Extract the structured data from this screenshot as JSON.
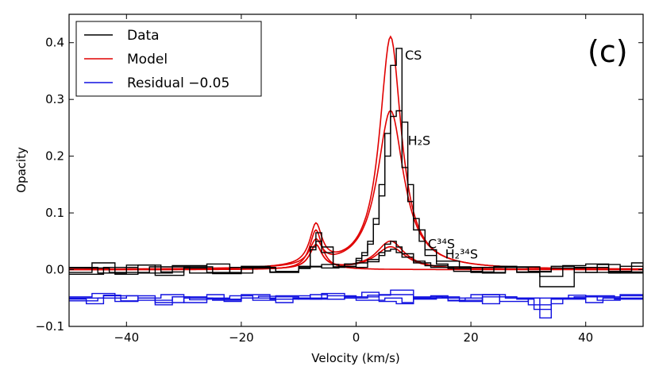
{
  "chart_data": {
    "type": "line",
    "panel_label": "(c)",
    "xlabel": "Velocity (km/s)",
    "ylabel": "Opacity",
    "xlim": [
      -50,
      50
    ],
    "ylim": [
      -0.1,
      0.45
    ],
    "xticks": [
      -40,
      -20,
      0,
      20,
      40
    ],
    "xtick_labels": [
      "−40",
      "−20",
      "0",
      "20",
      "40"
    ],
    "yticks": [
      -0.1,
      0.0,
      0.1,
      0.2,
      0.3,
      0.4
    ],
    "ytick_labels": [
      "−0.1",
      "0.0",
      "0.1",
      "0.2",
      "0.3",
      "0.4"
    ],
    "grid": false,
    "legend": {
      "placement": "top-left",
      "entries": [
        {
          "label": "Data",
          "color": "#000000"
        },
        {
          "label": "Model",
          "color": "#e00000"
        },
        {
          "label": "Residual −0.05",
          "color": "#1010e0"
        }
      ]
    },
    "annotations": [
      {
        "id": "cs",
        "text": "CS",
        "x": 8.5,
        "y": 0.37
      },
      {
        "id": "h2s",
        "text": "H₂S",
        "x": 9.0,
        "y": 0.22
      },
      {
        "id": "c34s",
        "text": "C³⁴S",
        "x": 12.5,
        "y": 0.038
      },
      {
        "id": "h234s",
        "text": "H₂³⁴S",
        "x": 15.5,
        "y": 0.02
      }
    ],
    "components": [
      {
        "name": "CS",
        "center": 6.0,
        "peak": 0.41,
        "width": 2.3
      },
      {
        "name": "H2S",
        "center": 6.0,
        "peak": 0.28,
        "width": 2.8
      },
      {
        "name": "C34S",
        "center": 6.0,
        "peak": 0.05,
        "width": 3.0
      },
      {
        "name": "H234S",
        "center": 6.0,
        "peak": 0.04,
        "width": 3.2
      },
      {
        "name": "secondary",
        "center": -7.0,
        "peak": 0.07,
        "width": 1.3
      }
    ],
    "series": [
      {
        "name": "Data CS",
        "style": "step",
        "color": "#000000",
        "x": [
          -50,
          -46,
          -42,
          -38,
          -34,
          -30,
          -26,
          -22,
          -18,
          -14,
          -10,
          -8,
          -7,
          -6,
          -4,
          -2,
          0,
          1,
          2,
          3,
          4,
          5,
          6,
          7,
          8,
          9,
          10,
          11,
          12,
          14,
          16,
          20,
          24,
          28,
          32,
          36,
          40,
          44,
          48,
          50
        ],
        "y": [
          -0.005,
          0.012,
          -0.008,
          0.008,
          -0.004,
          0.003,
          0.01,
          -0.006,
          0.004,
          -0.003,
          0.002,
          0.04,
          0.065,
          0.04,
          0.005,
          0.01,
          0.02,
          0.03,
          0.05,
          0.09,
          0.15,
          0.24,
          0.36,
          0.39,
          0.26,
          0.15,
          0.09,
          0.05,
          0.025,
          0.01,
          0.005,
          -0.004,
          0.006,
          -0.005,
          -0.012,
          0.007,
          0.01,
          -0.003,
          0.012,
          0.004
        ]
      },
      {
        "name": "Data H2S",
        "style": "step",
        "color": "#000000",
        "x": [
          -50,
          -45,
          -40,
          -35,
          -30,
          -25,
          -20,
          -15,
          -10,
          -8,
          -7,
          -6,
          -4,
          -2,
          0,
          1,
          2,
          3,
          4,
          5,
          6,
          7,
          8,
          9,
          10,
          12,
          14,
          18,
          22,
          26,
          30,
          34,
          38,
          42,
          46,
          50
        ],
        "y": [
          0.004,
          -0.006,
          0.008,
          -0.01,
          0.005,
          -0.007,
          0.006,
          -0.004,
          0.003,
          0.035,
          0.05,
          0.03,
          0.004,
          0.01,
          0.016,
          0.025,
          0.045,
          0.08,
          0.13,
          0.2,
          0.27,
          0.28,
          0.18,
          0.12,
          0.07,
          0.035,
          0.015,
          0.004,
          -0.006,
          0.004,
          -0.003,
          0.006,
          -0.005,
          0.009,
          -0.004,
          0.006
        ]
      },
      {
        "name": "Data C34S",
        "style": "step",
        "color": "#000000",
        "x": [
          -50,
          -44,
          -38,
          -32,
          -26,
          -20,
          -14,
          -10,
          -6,
          -3,
          0,
          2,
          4,
          5,
          6,
          7,
          8,
          10,
          12,
          16,
          20,
          26,
          32,
          38,
          44,
          50
        ],
        "y": [
          -0.008,
          0.004,
          -0.006,
          0.007,
          -0.005,
          0.003,
          -0.004,
          0.006,
          0.009,
          0.005,
          0.004,
          0.014,
          0.03,
          0.045,
          0.05,
          0.04,
          0.028,
          0.015,
          0.007,
          0.002,
          -0.005,
          0.005,
          -0.03,
          0.004,
          -0.006,
          0.003
        ]
      },
      {
        "name": "Data H234S",
        "style": "step",
        "color": "#000000",
        "x": [
          -50,
          -43,
          -36,
          -29,
          -22,
          -15,
          -10,
          -6,
          -3,
          0,
          2,
          4,
          5,
          6,
          7,
          8,
          10,
          13,
          17,
          22,
          28,
          34,
          40,
          46,
          50
        ],
        "y": [
          0.003,
          -0.005,
          0.005,
          -0.006,
          0.004,
          -0.005,
          0.005,
          0.003,
          0.006,
          0.012,
          0.018,
          0.025,
          0.033,
          0.036,
          0.03,
          0.022,
          0.012,
          0.004,
          -0.003,
          0.004,
          -0.004,
          0.003,
          -0.005,
          0.006,
          -0.002
        ]
      },
      {
        "name": "Residual 1",
        "style": "step",
        "color": "#1010e0",
        "x": [
          -50,
          -47,
          -44,
          -41,
          -38,
          -35,
          -32,
          -29,
          -26,
          -23,
          -20,
          -17,
          -14,
          -11,
          -8,
          -5,
          -2,
          1,
          4,
          7,
          10,
          13,
          16,
          19,
          22,
          25,
          28,
          31,
          34,
          37,
          40,
          43,
          46,
          50
        ],
        "y": [
          -0.052,
          -0.06,
          -0.045,
          -0.055,
          -0.05,
          -0.062,
          -0.048,
          -0.053,
          -0.044,
          -0.056,
          -0.05,
          -0.047,
          -0.058,
          -0.05,
          -0.044,
          -0.052,
          -0.048,
          -0.04,
          -0.056,
          -0.06,
          -0.05,
          -0.046,
          -0.055,
          -0.05,
          -0.06,
          -0.048,
          -0.052,
          -0.07,
          -0.05,
          -0.045,
          -0.058,
          -0.05,
          -0.046,
          -0.052
        ]
      },
      {
        "name": "Residual 2",
        "style": "step",
        "color": "#1010e0",
        "x": [
          -50,
          -46,
          -42,
          -38,
          -34,
          -30,
          -26,
          -22,
          -18,
          -14,
          -10,
          -6,
          -2,
          2,
          6,
          10,
          14,
          18,
          22,
          26,
          30,
          34,
          38,
          42,
          46,
          50
        ],
        "y": [
          -0.048,
          -0.042,
          -0.056,
          -0.05,
          -0.044,
          -0.058,
          -0.05,
          -0.046,
          -0.054,
          -0.048,
          -0.052,
          -0.042,
          -0.05,
          -0.045,
          -0.036,
          -0.052,
          -0.048,
          -0.056,
          -0.044,
          -0.05,
          -0.062,
          -0.05,
          -0.048,
          -0.054,
          -0.044,
          -0.05
        ]
      },
      {
        "name": "Residual 3",
        "style": "step",
        "color": "#1010e0",
        "x": [
          -50,
          -45,
          -40,
          -35,
          -30,
          -25,
          -20,
          -15,
          -10,
          -5,
          0,
          5,
          8,
          10,
          15,
          20,
          25,
          30,
          32,
          34,
          36,
          40,
          45,
          50
        ],
        "y": [
          -0.055,
          -0.05,
          -0.046,
          -0.058,
          -0.05,
          -0.054,
          -0.044,
          -0.052,
          -0.05,
          -0.046,
          -0.054,
          -0.05,
          -0.058,
          -0.048,
          -0.05,
          -0.044,
          -0.056,
          -0.05,
          -0.085,
          -0.06,
          -0.05,
          -0.046,
          -0.052,
          -0.05
        ]
      },
      {
        "name": "Residual 4",
        "style": "step",
        "color": "#1010e0",
        "x": [
          -50,
          -44,
          -38,
          -32,
          -26,
          -20,
          -14,
          -8,
          -2,
          4,
          10,
          16,
          22,
          28,
          34,
          40,
          46,
          50
        ],
        "y": [
          -0.05,
          -0.046,
          -0.054,
          -0.048,
          -0.052,
          -0.05,
          -0.046,
          -0.052,
          -0.048,
          -0.044,
          -0.05,
          -0.054,
          -0.048,
          -0.05,
          -0.052,
          -0.048,
          -0.05,
          -0.05
        ]
      }
    ]
  }
}
